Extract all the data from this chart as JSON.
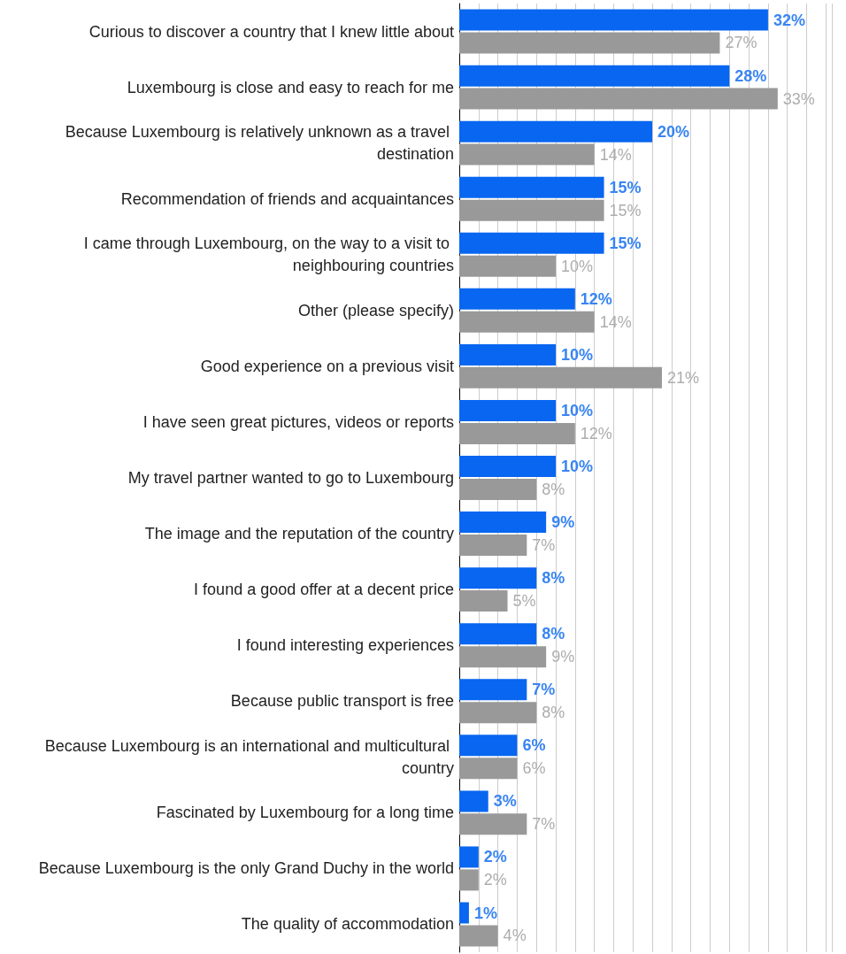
{
  "chart_data": {
    "type": "bar",
    "orientation": "horizontal",
    "categories": [
      "Curious to discover a country that I knew little about",
      "Luxembourg is close and easy to reach for me",
      "Because Luxembourg is relatively unknown as a travel destination",
      "Recommendation of friends and acquaintances",
      "I came through Luxembourg, on the way to a visit to neighbouring countries",
      "Other (please specify)",
      "Good experience on a previous visit",
      "I have seen great pictures, videos or reports",
      "My travel partner wanted to go to Luxembourg",
      "The image and the reputation of the country",
      "I found a good offer at a decent price",
      "I found interesting experiences",
      "Because public transport is free",
      "Because Luxembourg is an international and multicultural country",
      "Fascinated by Luxembourg for a long time",
      "Because Luxembourg is the only Grand Duchy in the world",
      "The quality of accommodation"
    ],
    "series": [
      {
        "color": "#0866f0",
        "values": [
          32,
          28,
          20,
          15,
          15,
          12,
          10,
          10,
          10,
          9,
          8,
          8,
          7,
          6,
          3,
          2,
          1
        ],
        "value_labels": [
          "32%",
          "28%",
          "20%",
          "15%",
          "15%",
          "12%",
          "10%",
          "10%",
          "10%",
          "9%",
          "8%",
          "8%",
          "7%",
          "6%",
          "3%",
          "2%",
          "1%"
        ]
      },
      {
        "color": "#999999",
        "values": [
          27,
          33,
          14,
          15,
          10,
          14,
          21,
          12,
          8,
          7,
          5,
          9,
          8,
          6,
          7,
          2,
          4
        ],
        "value_labels": [
          "27%",
          "33%",
          "14%",
          "15%",
          "10%",
          "14%",
          "21%",
          "12%",
          "8%",
          "7%",
          "5%",
          "9%",
          "8%",
          "6%",
          "7%",
          "2%",
          "4%"
        ]
      }
    ],
    "tick_labels": "y",
    "grid": "x"
  }
}
